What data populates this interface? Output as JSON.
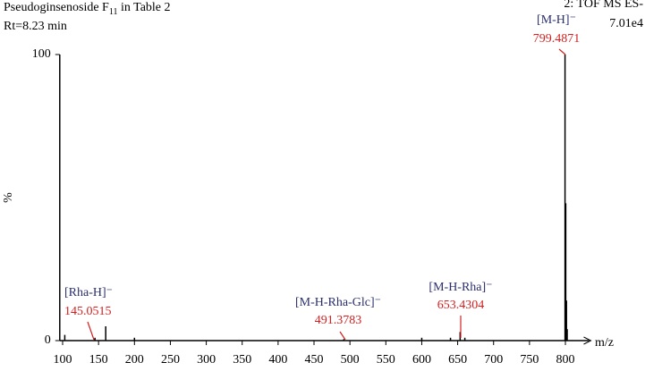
{
  "chart_data": {
    "type": "spectrum",
    "title": {
      "text": "Pseudoginsenoside F",
      "subscript": "11",
      "suffix": " in Table 2"
    },
    "subtitle": "Rt=8.23 min",
    "instrument": "2: TOF MS ES-",
    "intensity": "7.01e4",
    "x_label": "m/z",
    "y_label": "%",
    "color": "#000000",
    "x": [
      103,
      145.0515,
      160,
      200,
      491.3783,
      600,
      640,
      653.4304,
      660,
      799.4871,
      800.4871,
      801.4871,
      802.4871
    ],
    "values": [
      2,
      1,
      5,
      1,
      0.5,
      1,
      1,
      3,
      1,
      100,
      48,
      14,
      4
    ],
    "xlim": [
      96,
      828
    ],
    "xticks": [
      100,
      150,
      200,
      250,
      300,
      350,
      400,
      450,
      500,
      550,
      600,
      650,
      700,
      750,
      800
    ],
    "ylim": [
      0,
      100
    ],
    "yticks": [
      0,
      100
    ],
    "annotations": [
      {
        "ion": "[Rha-H]⁻",
        "mz": 145.0515
      },
      {
        "ion": "[M-H-Rha-Glc]⁻",
        "mz": 491.3783
      },
      {
        "ion": "[M-H-Rha]⁻",
        "mz": 653.4304
      },
      {
        "ion": "[M-H]⁻",
        "mz": 799.4871
      }
    ]
  }
}
